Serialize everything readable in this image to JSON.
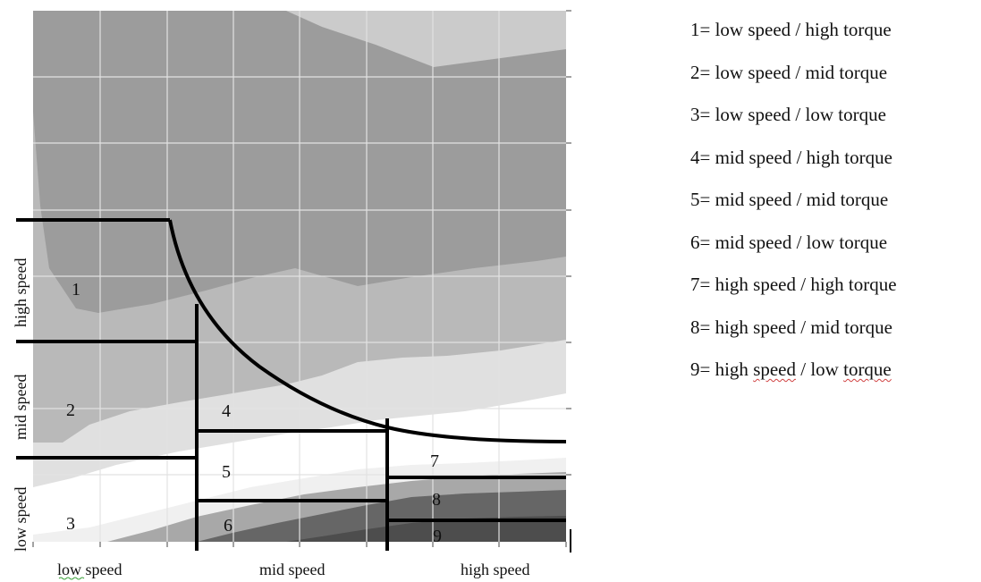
{
  "diagram": {
    "region_labels": [
      "1",
      "2",
      "3",
      "4",
      "5",
      "6",
      "7",
      "8",
      "9"
    ],
    "x_axis_labels": [
      "low speed",
      "mid speed",
      "high speed"
    ],
    "y_axis_labels": [
      "high speed",
      "mid speed",
      "low speed"
    ],
    "colors": {
      "band_darkest": "#4d4d4d",
      "band_dark": "#666666",
      "band_mid_dark": "#9c9c9c",
      "band_top": "#cbcbcb",
      "band_mid": "#b9b9b9",
      "band_light": "#e0e0e0",
      "band_white": "#ffffff",
      "gridline": "#e2e2e2",
      "boundary": "#000000"
    }
  },
  "legend": {
    "items": [
      "1= low speed / high torque",
      "2= low speed / mid torque",
      "3= low speed / low torque",
      "4= mid speed / high torque",
      "5= mid speed / mid torque",
      "6= mid speed / low torque",
      "7= high speed / high torque",
      "8= high speed / mid torque",
      "9= high speed / low torque"
    ],
    "squiggle_underlined": [
      "speed",
      "torque"
    ]
  }
}
